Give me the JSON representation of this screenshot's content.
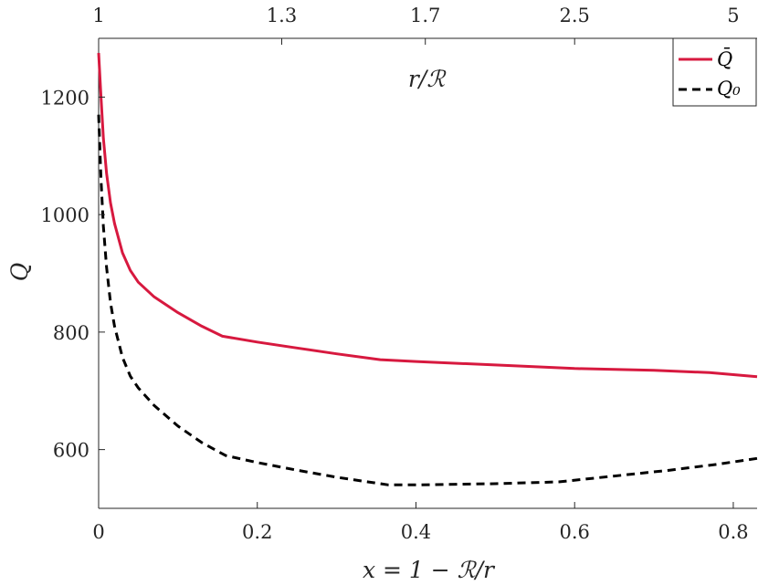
{
  "chart_data": {
    "type": "line",
    "xlabel": "x = 1 − ℛ/r",
    "ylabel": "Q",
    "top_axis_label": "r/ℛ",
    "xlim": [
      0,
      0.83
    ],
    "ylim": [
      500,
      1300
    ],
    "x_ticks": [
      0,
      0.2,
      0.4,
      0.6,
      0.8
    ],
    "x_tick_labels": [
      "0",
      "0.2",
      "0.4",
      "0.6",
      "0.8"
    ],
    "y_ticks": [
      600,
      800,
      1000,
      1200
    ],
    "y_tick_labels": [
      "600",
      "800",
      "1000",
      "1200"
    ],
    "top_ticks": [
      0,
      0.2308,
      0.4118,
      0.6,
      0.8
    ],
    "top_tick_labels": [
      "1",
      "1.3",
      "1.7",
      "2.5",
      "5"
    ],
    "grid": false,
    "legend_position": "top-right",
    "series": [
      {
        "name": "Q̄",
        "color": "#d7193f",
        "style": "solid",
        "x": [
          0,
          0.003,
          0.006,
          0.01,
          0.015,
          0.02,
          0.03,
          0.04,
          0.05,
          0.07,
          0.1,
          0.13,
          0.156,
          0.2,
          0.25,
          0.3,
          0.355,
          0.4,
          0.5,
          0.6,
          0.7,
          0.77,
          0.83
        ],
        "y": [
          1275,
          1200,
          1130,
          1070,
          1020,
          985,
          935,
          905,
          885,
          860,
          833,
          810,
          793,
          783,
          773,
          763,
          753,
          750,
          744,
          738,
          735,
          731,
          724
        ]
      },
      {
        "name": "Q₀",
        "color": "#000000",
        "style": "dashed",
        "x": [
          0,
          0.003,
          0.006,
          0.01,
          0.015,
          0.02,
          0.03,
          0.04,
          0.05,
          0.07,
          0.1,
          0.13,
          0.16,
          0.2,
          0.25,
          0.3,
          0.365,
          0.4,
          0.5,
          0.58,
          0.65,
          0.72,
          0.78,
          0.83
        ],
        "y": [
          1170,
          1060,
          980,
          910,
          850,
          810,
          757,
          725,
          705,
          675,
          640,
          612,
          590,
          578,
          565,
          553,
          540,
          540,
          542,
          545,
          555,
          565,
          575,
          585
        ]
      }
    ]
  }
}
